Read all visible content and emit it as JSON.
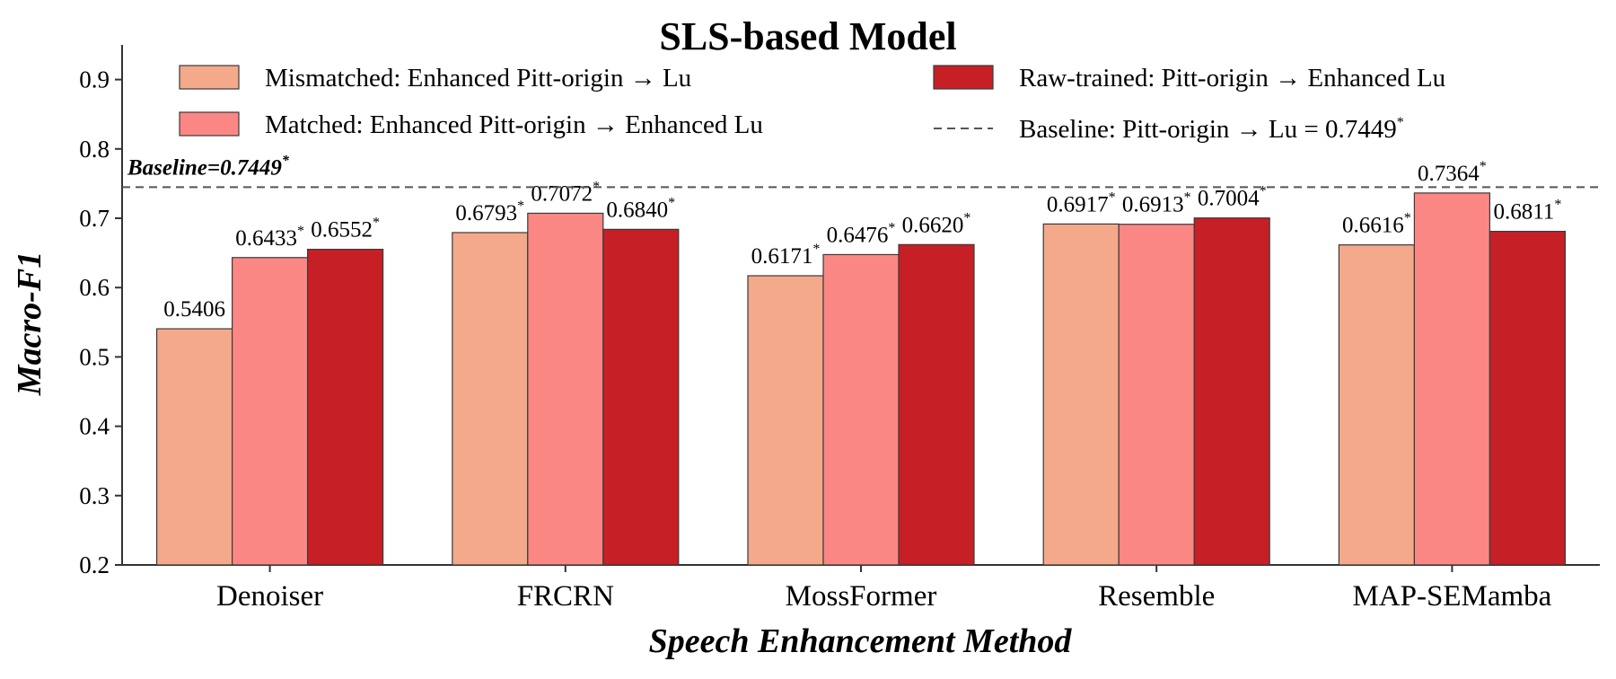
{
  "chart_data": {
    "type": "bar",
    "title": "SLS-based Model",
    "xlabel": "Speech Enhancement Method",
    "ylabel": "Macro-F1",
    "ylim": [
      0.2,
      0.95
    ],
    "yticks": [
      "0.2",
      "0.3",
      "0.4",
      "0.5",
      "0.6",
      "0.7",
      "0.8",
      "0.9"
    ],
    "categories": [
      "Denoiser",
      "FRCRN",
      "MossFormer",
      "Resemble",
      "MAP-SEMamba"
    ],
    "series": [
      {
        "name": "Mismatched: Enhanced Pitt-origin → Lu",
        "color": "#f4a98b",
        "values": [
          0.5406,
          0.6793,
          0.6171,
          0.6917,
          0.6616
        ],
        "labels": [
          "0.5406",
          "0.6793",
          "0.6171",
          "0.6917",
          "0.6616"
        ],
        "significant": [
          false,
          true,
          true,
          true,
          true
        ]
      },
      {
        "name": "Matched: Enhanced Pitt-origin → Enhanced Lu",
        "color": "#fb8784",
        "values": [
          0.6433,
          0.7072,
          0.6476,
          0.6913,
          0.7364
        ],
        "labels": [
          "0.6433",
          "0.7072",
          "0.6476",
          "0.6913",
          "0.7364"
        ],
        "significant": [
          true,
          true,
          true,
          true,
          true
        ]
      },
      {
        "name": "Raw-trained: Pitt-origin → Enhanced Lu",
        "color": "#c62026",
        "values": [
          0.6552,
          0.684,
          0.662,
          0.7004,
          0.6811
        ],
        "labels": [
          "0.6552",
          "0.6840",
          "0.6620",
          "0.7004",
          "0.6811"
        ],
        "significant": [
          true,
          true,
          true,
          true,
          true
        ]
      }
    ],
    "baseline": {
      "value": 0.7449,
      "label": "Baseline=0.7449",
      "legend": "Baseline: Pitt-origin → Lu = 0.7449",
      "significant": true
    },
    "significance_marker": "*",
    "legend_position": "top",
    "grid": false
  }
}
